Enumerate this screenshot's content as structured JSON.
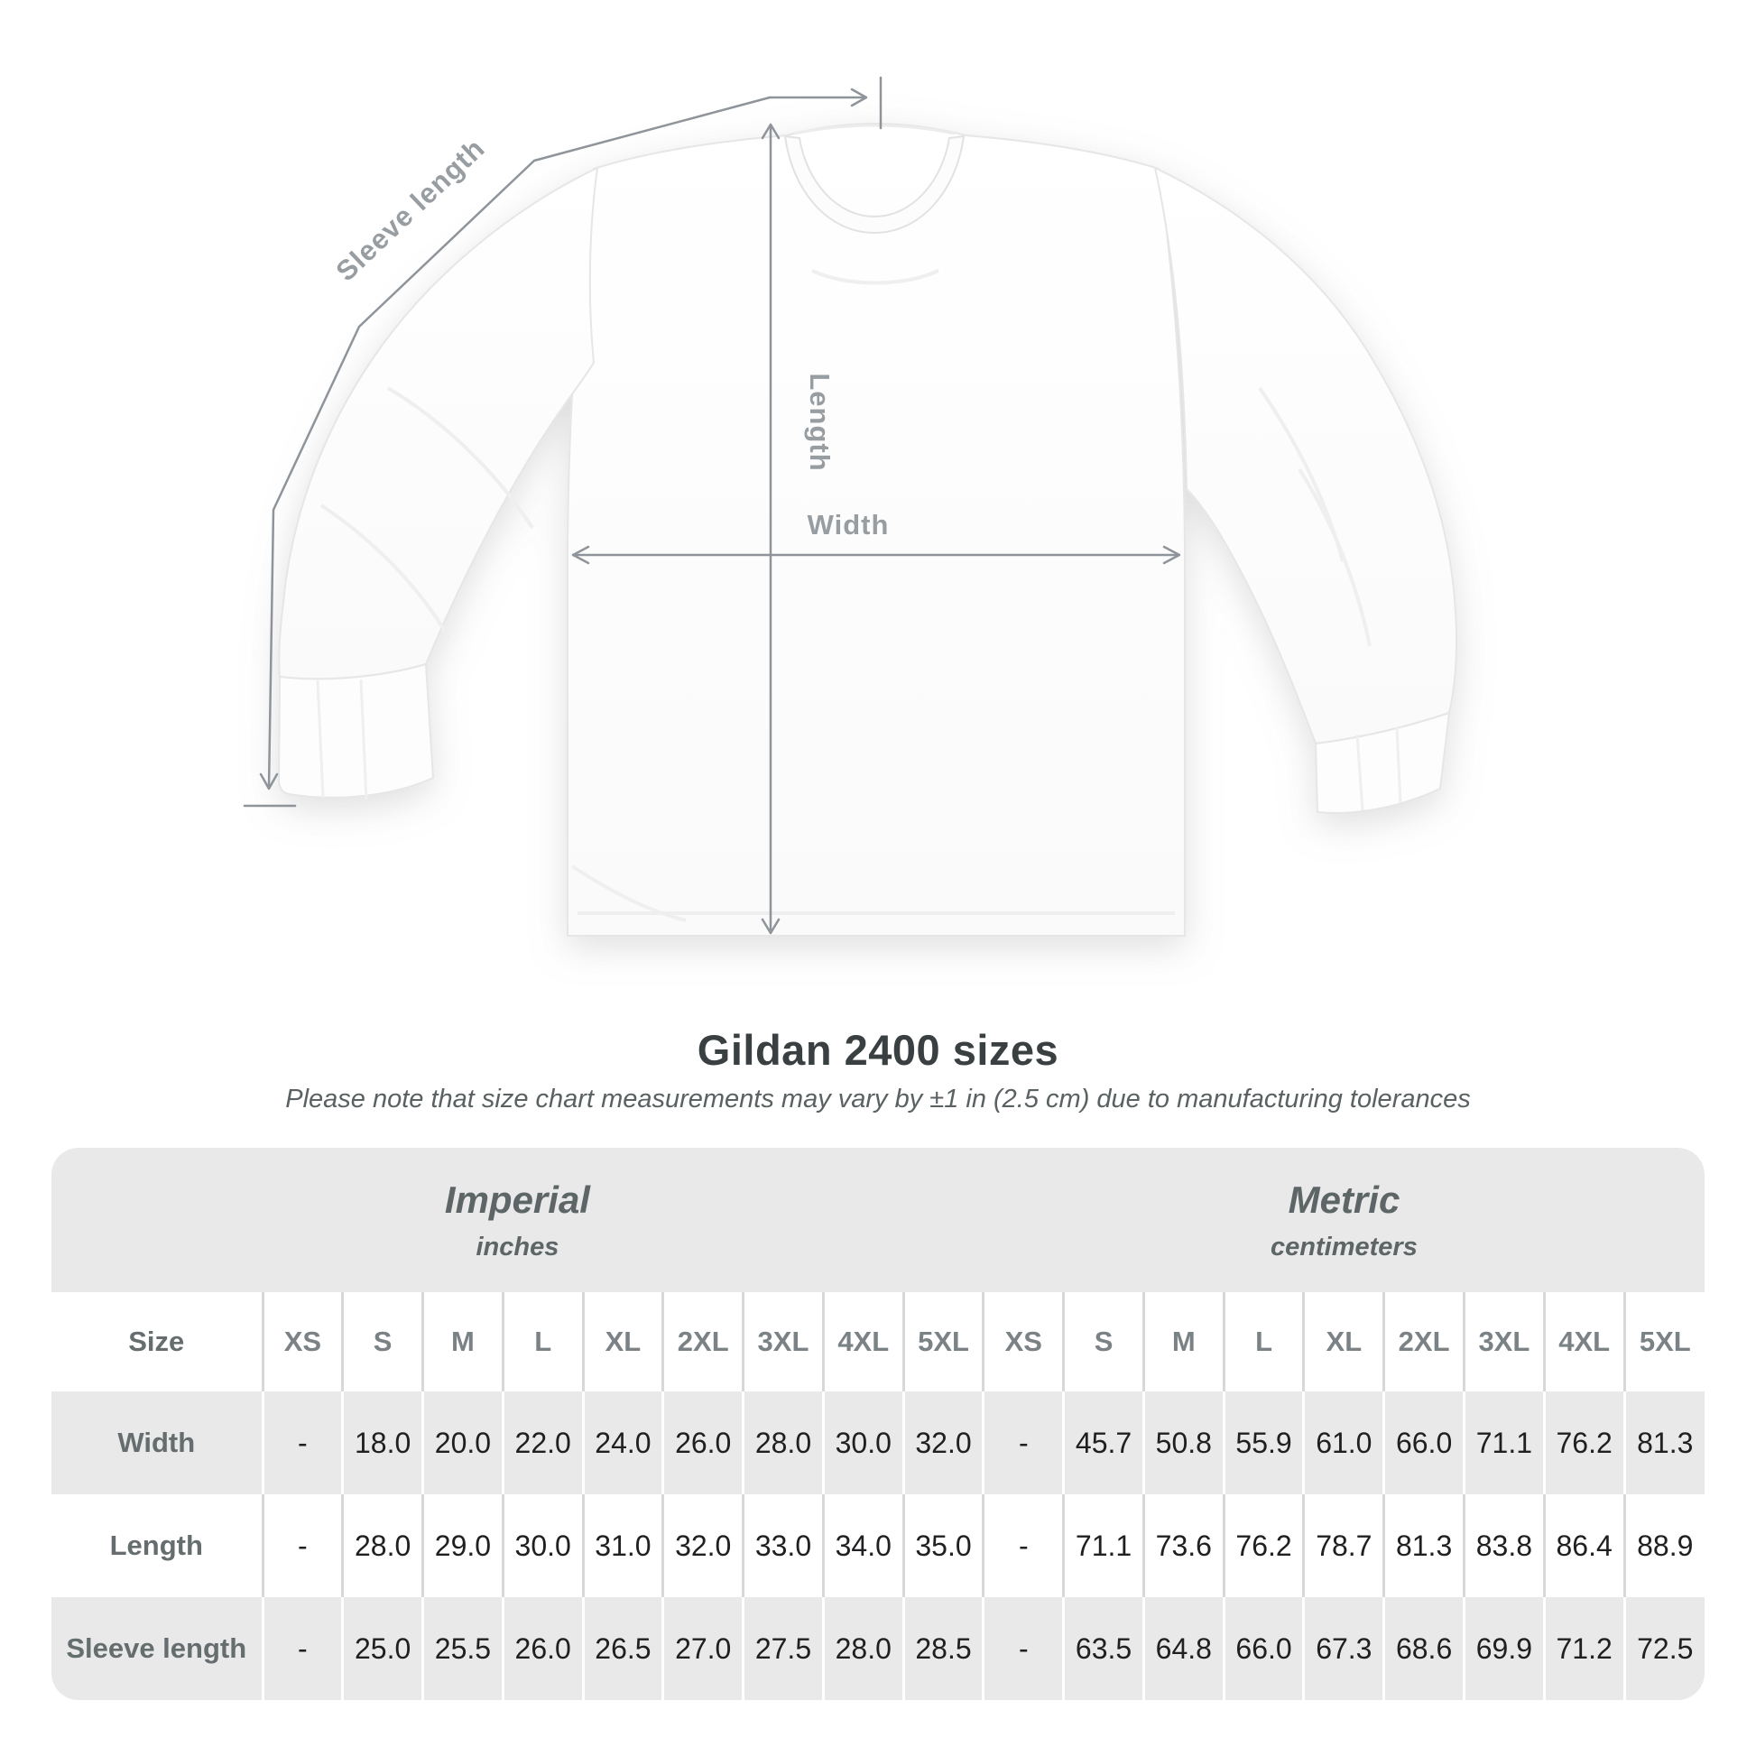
{
  "heading": {
    "title": "Gildan 2400 sizes",
    "subtitle": "Please note that size chart measurements may vary by ±1 in (2.5 cm) due to manufacturing tolerances"
  },
  "diagram": {
    "garment": "white long-sleeve t-shirt flat lay",
    "labels": {
      "sleeve_length": "Sleeve length",
      "length": "Length",
      "width": "Width"
    }
  },
  "colors": {
    "measure_line": "#8e9499",
    "diagram_label": "#979da1",
    "table_band_gray": "#e9e9e9",
    "separator_on_white": "#d8d8d8",
    "separator_on_gray": "#ffffff",
    "title_text": "#3a4042",
    "subtitle_text": "#5a6163",
    "header_text": "#7b8285",
    "row_label_text": "#656d6e",
    "value_text": "#202022"
  },
  "size_chart": {
    "size_label": "Size",
    "sizes": [
      "XS",
      "S",
      "M",
      "L",
      "XL",
      "2XL",
      "3XL",
      "4XL",
      "5XL"
    ],
    "unit_groups": [
      {
        "label": "Imperial",
        "sublabel": "inches"
      },
      {
        "label": "Metric",
        "sublabel": "centimeters"
      }
    ],
    "rows": [
      {
        "label": "Width",
        "imperial": [
          "-",
          "18.0",
          "20.0",
          "22.0",
          "24.0",
          "26.0",
          "28.0",
          "30.0",
          "32.0"
        ],
        "metric": [
          "-",
          "45.7",
          "50.8",
          "55.9",
          "61.0",
          "66.0",
          "71.1",
          "76.2",
          "81.3"
        ]
      },
      {
        "label": "Length",
        "imperial": [
          "-",
          "28.0",
          "29.0",
          "30.0",
          "31.0",
          "32.0",
          "33.0",
          "34.0",
          "35.0"
        ],
        "metric": [
          "-",
          "71.1",
          "73.6",
          "76.2",
          "78.7",
          "81.3",
          "83.8",
          "86.4",
          "88.9"
        ]
      },
      {
        "label": "Sleeve length",
        "imperial": [
          "-",
          "25.0",
          "25.5",
          "26.0",
          "26.5",
          "27.0",
          "27.5",
          "28.0",
          "28.5"
        ],
        "metric": [
          "-",
          "63.5",
          "64.8",
          "66.0",
          "67.3",
          "68.6",
          "69.9",
          "71.2",
          "72.5"
        ]
      }
    ]
  },
  "chart_data": {
    "type": "table",
    "title": "Gildan 2400 sizes",
    "columns": [
      "XS",
      "S",
      "M",
      "L",
      "XL",
      "2XL",
      "3XL",
      "4XL",
      "5XL"
    ],
    "imperial_inches": {
      "Width": [
        null,
        18.0,
        20.0,
        22.0,
        24.0,
        26.0,
        28.0,
        30.0,
        32.0
      ],
      "Length": [
        null,
        28.0,
        29.0,
        30.0,
        31.0,
        32.0,
        33.0,
        34.0,
        35.0
      ],
      "Sleeve length": [
        null,
        25.0,
        25.5,
        26.0,
        26.5,
        27.0,
        27.5,
        28.0,
        28.5
      ]
    },
    "metric_centimeters": {
      "Width": [
        null,
        45.7,
        50.8,
        55.9,
        61.0,
        66.0,
        71.1,
        76.2,
        81.3
      ],
      "Length": [
        null,
        71.1,
        73.6,
        76.2,
        78.7,
        81.3,
        83.8,
        86.4,
        88.9
      ],
      "Sleeve length": [
        null,
        63.5,
        64.8,
        66.0,
        67.3,
        68.6,
        69.9,
        71.2,
        72.5
      ]
    }
  }
}
